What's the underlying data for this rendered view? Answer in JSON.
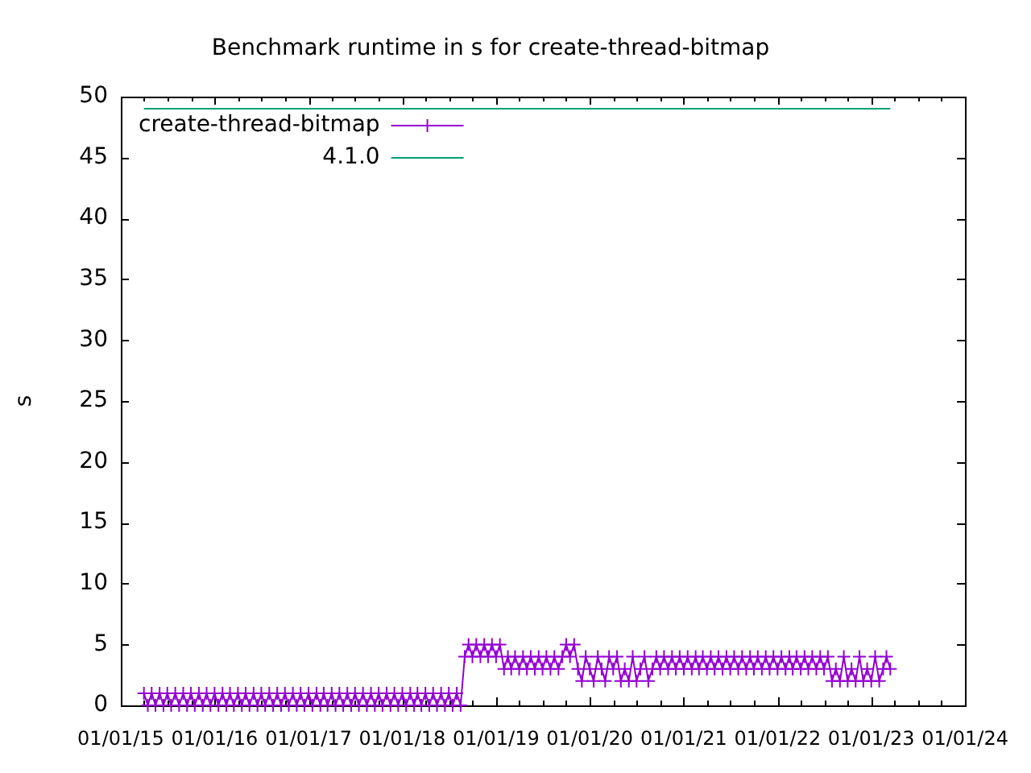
{
  "chart_data": {
    "type": "line",
    "title": "Benchmark runtime in s for create-thread-bitmap",
    "ylabel": "s",
    "legend": "top left",
    "xlim": [
      "2015-01-01",
      "2024-01-01"
    ],
    "xticks": [
      {
        "value": "2015-01-01",
        "label": "01/01/15"
      },
      {
        "value": "2015-04-01",
        "label": null
      },
      {
        "value": "2015-07-01",
        "label": null
      },
      {
        "value": "2015-10-01",
        "label": null
      },
      {
        "value": "2016-01-01",
        "label": "01/01/16"
      },
      {
        "value": "2016-04-01",
        "label": null
      },
      {
        "value": "2016-07-01",
        "label": null
      },
      {
        "value": "2016-10-01",
        "label": null
      },
      {
        "value": "2017-01-01",
        "label": "01/01/17"
      },
      {
        "value": "2017-04-01",
        "label": null
      },
      {
        "value": "2017-07-01",
        "label": null
      },
      {
        "value": "2017-10-01",
        "label": null
      },
      {
        "value": "2018-01-01",
        "label": "01/01/18"
      },
      {
        "value": "2018-04-01",
        "label": null
      },
      {
        "value": "2018-07-01",
        "label": null
      },
      {
        "value": "2018-10-01",
        "label": null
      },
      {
        "value": "2019-01-01",
        "label": "01/01/19"
      },
      {
        "value": "2019-04-01",
        "label": null
      },
      {
        "value": "2019-07-01",
        "label": null
      },
      {
        "value": "2019-10-01",
        "label": null
      },
      {
        "value": "2020-01-01",
        "label": "01/01/20"
      },
      {
        "value": "2020-04-01",
        "label": null
      },
      {
        "value": "2020-07-01",
        "label": null
      },
      {
        "value": "2020-10-01",
        "label": null
      },
      {
        "value": "2021-01-01",
        "label": "01/01/21"
      },
      {
        "value": "2021-04-01",
        "label": null
      },
      {
        "value": "2021-07-01",
        "label": null
      },
      {
        "value": "2021-10-01",
        "label": null
      },
      {
        "value": "2022-01-01",
        "label": "01/01/22"
      },
      {
        "value": "2022-04-01",
        "label": null
      },
      {
        "value": "2022-07-01",
        "label": null
      },
      {
        "value": "2022-10-01",
        "label": null
      },
      {
        "value": "2023-01-01",
        "label": "01/01/23"
      },
      {
        "value": "2023-04-01",
        "label": null
      },
      {
        "value": "2023-07-01",
        "label": null
      },
      {
        "value": "2023-10-01",
        "label": null
      },
      {
        "value": "2024-01-01",
        "label": "01/01/24"
      }
    ],
    "ylim": [
      0,
      50
    ],
    "yticks": [
      0,
      5,
      10,
      15,
      20,
      25,
      30,
      35,
      40,
      45,
      50
    ],
    "series": [
      {
        "name": "create-thread-bitmap",
        "color": "#9400d3",
        "marker": "cross",
        "x": [
          "2015-04-01",
          "2015-04-16",
          "2015-05-01",
          "2015-05-16",
          "2015-06-01",
          "2015-06-16",
          "2015-07-01",
          "2015-07-16",
          "2015-08-01",
          "2015-08-16",
          "2015-09-01",
          "2015-09-16",
          "2015-10-01",
          "2015-10-16",
          "2015-11-01",
          "2015-11-16",
          "2015-12-01",
          "2015-12-16",
          "2016-01-01",
          "2016-01-16",
          "2016-02-01",
          "2016-02-16",
          "2016-03-01",
          "2016-03-16",
          "2016-04-01",
          "2016-04-16",
          "2016-05-01",
          "2016-05-16",
          "2016-06-01",
          "2016-06-16",
          "2016-07-01",
          "2016-07-16",
          "2016-08-01",
          "2016-08-16",
          "2016-09-01",
          "2016-09-16",
          "2016-10-01",
          "2016-10-16",
          "2016-11-01",
          "2016-11-16",
          "2016-12-01",
          "2016-12-16",
          "2017-01-01",
          "2017-01-16",
          "2017-02-01",
          "2017-02-16",
          "2017-03-01",
          "2017-03-16",
          "2017-04-01",
          "2017-04-16",
          "2017-05-01",
          "2017-05-16",
          "2017-06-01",
          "2017-06-16",
          "2017-07-01",
          "2017-07-16",
          "2017-08-01",
          "2017-08-16",
          "2017-09-01",
          "2017-09-16",
          "2017-10-01",
          "2017-10-16",
          "2017-11-01",
          "2017-11-16",
          "2017-12-01",
          "2017-12-16",
          "2018-01-01",
          "2018-01-16",
          "2018-02-01",
          "2018-02-16",
          "2018-03-01",
          "2018-03-16",
          "2018-04-01",
          "2018-04-16",
          "2018-05-01",
          "2018-05-16",
          "2018-06-01",
          "2018-06-16",
          "2018-07-01",
          "2018-07-16",
          "2018-08-01",
          "2018-08-16",
          "2018-09-01",
          "2018-09-16",
          "2018-10-01",
          "2018-10-16",
          "2018-11-01",
          "2018-11-16",
          "2018-12-01",
          "2018-12-16",
          "2019-01-01",
          "2019-01-16",
          "2019-02-01",
          "2019-02-16",
          "2019-03-01",
          "2019-03-16",
          "2019-04-01",
          "2019-04-16",
          "2019-05-01",
          "2019-05-16",
          "2019-06-01",
          "2019-06-16",
          "2019-07-01",
          "2019-07-16",
          "2019-08-01",
          "2019-08-16",
          "2019-09-01",
          "2019-09-16",
          "2019-10-01",
          "2019-10-16",
          "2019-11-01",
          "2019-11-16",
          "2019-12-01",
          "2019-12-16",
          "2020-01-01",
          "2020-01-16",
          "2020-02-01",
          "2020-02-16",
          "2020-03-01",
          "2020-03-16",
          "2020-04-01",
          "2020-04-16",
          "2020-05-01",
          "2020-05-16",
          "2020-06-01",
          "2020-06-16",
          "2020-07-01",
          "2020-07-16",
          "2020-08-01",
          "2020-08-16",
          "2020-09-01",
          "2020-09-16",
          "2020-10-01",
          "2020-10-16",
          "2020-11-01",
          "2020-11-16",
          "2020-12-01",
          "2020-12-16",
          "2021-01-01",
          "2021-01-16",
          "2021-02-01",
          "2021-02-16",
          "2021-03-01",
          "2021-03-16",
          "2021-04-01",
          "2021-04-16",
          "2021-05-01",
          "2021-05-16",
          "2021-06-01",
          "2021-06-16",
          "2021-07-01",
          "2021-07-16",
          "2021-08-01",
          "2021-08-16",
          "2021-09-01",
          "2021-09-16",
          "2021-10-01",
          "2021-10-16",
          "2021-11-01",
          "2021-11-16",
          "2021-12-01",
          "2021-12-16",
          "2022-01-01",
          "2022-01-16",
          "2022-02-01",
          "2022-02-16",
          "2022-03-01",
          "2022-03-16",
          "2022-04-01",
          "2022-04-16",
          "2022-05-01",
          "2022-05-16",
          "2022-06-01",
          "2022-06-16",
          "2022-07-01",
          "2022-07-16",
          "2022-08-01",
          "2022-08-16",
          "2022-09-01",
          "2022-09-16",
          "2022-10-01",
          "2022-10-16",
          "2022-11-01",
          "2022-11-16",
          "2022-12-01",
          "2022-12-16",
          "2023-01-01",
          "2023-01-16",
          "2023-02-01",
          "2023-02-16",
          "2023-03-01",
          "2023-03-16"
        ],
        "values": [
          1,
          0,
          1,
          0,
          1,
          0,
          1,
          0,
          1,
          0,
          1,
          0,
          1,
          0,
          1,
          0,
          1,
          0,
          1,
          0,
          1,
          0,
          1,
          0,
          1,
          0,
          1,
          0,
          1,
          0,
          1,
          0,
          1,
          0,
          1,
          0,
          1,
          0,
          1,
          0,
          1,
          0,
          1,
          0,
          1,
          0,
          1,
          0,
          1,
          0,
          1,
          0,
          1,
          0,
          1,
          0,
          1,
          0,
          1,
          0,
          1,
          0,
          1,
          0,
          1,
          0,
          1,
          0,
          1,
          0,
          1,
          0,
          1,
          0,
          1,
          0,
          1,
          0,
          1,
          0,
          1,
          0,
          4,
          5,
          4,
          5,
          4,
          5,
          4,
          5,
          4,
          5,
          3,
          4,
          3,
          4,
          3,
          4,
          3,
          4,
          3,
          4,
          3,
          4,
          3,
          4,
          3,
          4,
          5,
          4,
          5,
          3,
          2,
          4,
          3,
          2,
          4,
          3,
          2,
          4,
          3,
          4,
          2,
          3,
          2,
          4,
          2,
          3,
          4,
          2,
          3,
          4,
          3,
          4,
          3,
          4,
          3,
          4,
          3,
          4,
          3,
          4,
          3,
          4,
          3,
          4,
          3,
          4,
          3,
          4,
          3,
          4,
          3,
          4,
          3,
          4,
          3,
          4,
          3,
          4,
          3,
          4,
          3,
          4,
          3,
          4,
          3,
          4,
          3,
          4,
          3,
          4,
          3,
          4,
          3,
          4,
          2,
          3,
          2,
          4,
          2,
          3,
          2,
          4,
          2,
          3,
          2,
          4,
          2,
          3,
          4,
          3
        ]
      },
      {
        "name": "4.1.0",
        "color": "#009e73",
        "marker": "none",
        "x": [
          "2015-04-01",
          "2023-03-16"
        ],
        "values": [
          49,
          49
        ]
      }
    ]
  }
}
